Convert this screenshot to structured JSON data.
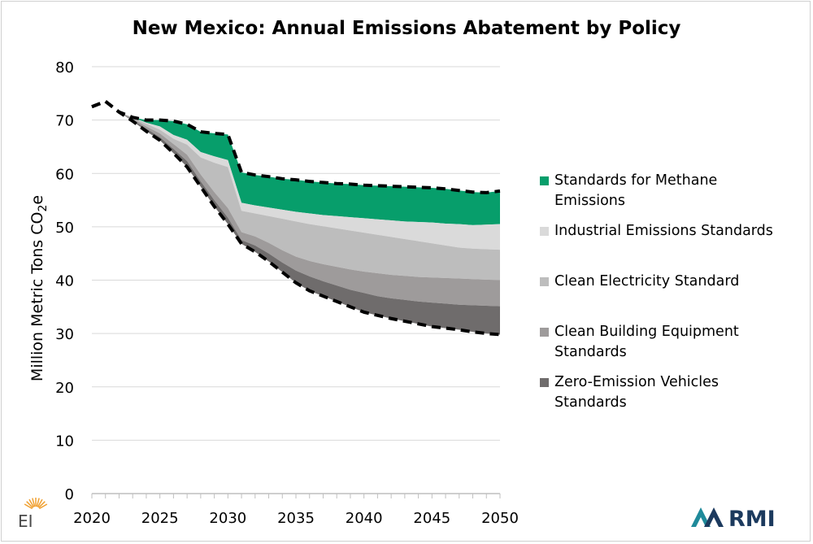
{
  "chart_data": {
    "type": "area",
    "title": "New Mexico: Annual Emissions Abatement by Policy",
    "ylabel": "Million Metric Tons CO",
    "ylabel_sub": "2",
    "ylabel_suffix": "e",
    "xlabel": "",
    "ylim": [
      0,
      80
    ],
    "xlim": [
      2020,
      2050
    ],
    "y_ticks": [
      "0",
      "10",
      "20",
      "30",
      "40",
      "50",
      "60",
      "70",
      "80"
    ],
    "x_ticks": [
      "2020",
      "2025",
      "2030",
      "2035",
      "2040",
      "2045",
      "2050"
    ],
    "legend_position": "right",
    "grid": "horizontal",
    "x": [
      2020,
      2021,
      2022,
      2023,
      2024,
      2025,
      2026,
      2027,
      2028,
      2029,
      2030,
      2031,
      2032,
      2033,
      2034,
      2035,
      2036,
      2037,
      2038,
      2039,
      2040,
      2041,
      2042,
      2043,
      2044,
      2045,
      2046,
      2047,
      2048,
      2049,
      2050
    ],
    "reference_top": [
      72.5,
      73.5,
      71.5,
      70.5,
      70.0,
      70.0,
      69.8,
      69.2,
      67.8,
      67.5,
      67.3,
      60.2,
      59.7,
      59.4,
      59.0,
      58.8,
      58.5,
      58.3,
      58.1,
      58.0,
      57.8,
      57.7,
      57.6,
      57.5,
      57.4,
      57.3,
      57.1,
      56.8,
      56.5,
      56.4,
      56.7
    ],
    "bands": [
      {
        "name": "Standards for Methane Emissions",
        "color": "#079e6b",
        "legend_lines": [
          "Standards for Methane",
          "Emissions"
        ],
        "lower": [
          72.5,
          73.5,
          71.5,
          70.5,
          69.5,
          68.8,
          67.2,
          66.3,
          64.0,
          63.2,
          62.5,
          54.5,
          54.0,
          53.6,
          53.2,
          52.8,
          52.5,
          52.2,
          52.0,
          51.8,
          51.6,
          51.4,
          51.2,
          51.0,
          50.9,
          50.8,
          50.6,
          50.5,
          50.3,
          50.4,
          50.5
        ]
      },
      {
        "name": "Industrial Emissions Standards",
        "color": "#dadada",
        "legend_lines": [
          "Industrial Emissions Standards"
        ],
        "lower": [
          72.5,
          73.5,
          71.5,
          70.5,
          69.3,
          68.2,
          66.5,
          65.4,
          63.0,
          62.0,
          61.2,
          53.0,
          52.5,
          52.0,
          51.5,
          51.0,
          50.5,
          50.1,
          49.7,
          49.3,
          48.9,
          48.5,
          48.1,
          47.7,
          47.3,
          46.9,
          46.5,
          46.1,
          45.9,
          45.8,
          45.7
        ]
      },
      {
        "name": "Clean Electricity Standard",
        "color": "#bdbdbd",
        "legend_lines": [
          "Clean Electricity Standard"
        ],
        "lower": [
          72.5,
          73.5,
          71.5,
          70.3,
          68.8,
          67.5,
          65.5,
          63.5,
          59.8,
          56.5,
          53.5,
          49.0,
          48.2,
          47.0,
          45.6,
          44.4,
          43.6,
          43.0,
          42.5,
          42.0,
          41.6,
          41.3,
          41.0,
          40.8,
          40.6,
          40.5,
          40.4,
          40.3,
          40.2,
          40.1,
          40.0
        ]
      },
      {
        "name": "Clean Building Equipment Standards",
        "color": "#9e9b9b",
        "legend_lines": [
          "Clean Building Equipment",
          "Standards"
        ],
        "lower": [
          72.5,
          73.5,
          71.5,
          70.0,
          68.4,
          66.8,
          64.6,
          62.3,
          58.5,
          55.0,
          51.7,
          47.5,
          46.5,
          45.0,
          43.3,
          41.8,
          40.7,
          39.8,
          39.0,
          38.2,
          37.6,
          37.0,
          36.6,
          36.3,
          36.0,
          35.8,
          35.6,
          35.4,
          35.3,
          35.2,
          35.1
        ]
      },
      {
        "name": "Zero-Emission Vehicles Standards",
        "color": "#6f6c6c",
        "legend_lines": [
          "Zero-Emission Vehicles",
          "Standards"
        ],
        "lower": [
          72.5,
          73.5,
          71.5,
          69.8,
          67.9,
          66.2,
          63.8,
          61.2,
          57.5,
          53.8,
          50.5,
          46.8,
          45.3,
          43.5,
          41.5,
          39.5,
          38.0,
          37.0,
          36.0,
          35.0,
          34.0,
          33.4,
          32.8,
          32.3,
          31.8,
          31.3,
          31.0,
          30.7,
          30.3,
          30.0,
          29.8
        ]
      }
    ],
    "reference_bottom": [
      72.5,
      73.5,
      71.5,
      69.8,
      67.9,
      66.2,
      63.8,
      61.2,
      57.5,
      53.8,
      50.5,
      46.8,
      45.3,
      43.5,
      41.5,
      39.5,
      38.0,
      37.0,
      36.0,
      35.0,
      34.0,
      33.4,
      32.8,
      32.3,
      31.8,
      31.3,
      31.0,
      30.7,
      30.3,
      30.0,
      29.8
    ]
  },
  "logos": {
    "left": "EI",
    "right": "RMI",
    "rmi_teal": "#1f8a9a",
    "rmi_navy": "#1c3a5e"
  },
  "colors": {
    "axis": "#bfbfbf",
    "grid": "#d9d9d9",
    "reference_line": "#000000"
  }
}
